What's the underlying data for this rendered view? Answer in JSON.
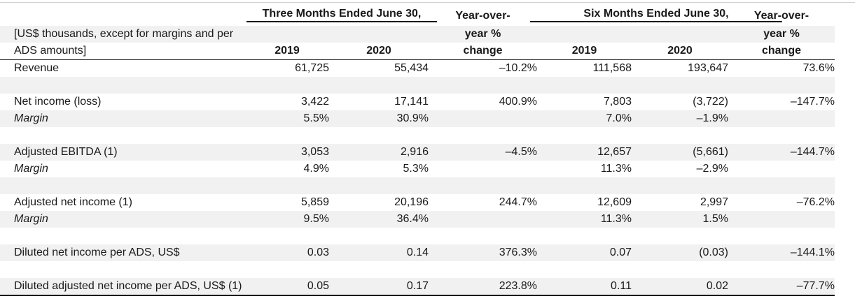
{
  "table": {
    "units_note": [
      "[US$ thousands, except for margins and per",
      "ADS amounts]"
    ],
    "column_groups": [
      {
        "title": "Three Months Ended June 30,",
        "years": [
          "2019",
          "2020"
        ]
      },
      {
        "title": "Six Months Ended June 30,",
        "years": [
          "2019",
          "2020"
        ]
      }
    ],
    "yoy_header_lines": [
      "Year-over-",
      "year %",
      "change"
    ],
    "rows": [
      {
        "type": "data",
        "label": "Revenue",
        "italic": false,
        "shaded": false,
        "values": [
          "61,725",
          "55,434",
          "–10.2%",
          "111,568",
          "193,647",
          "73.6%"
        ]
      },
      {
        "type": "spacer",
        "shaded": true,
        "values": [
          "",
          "",
          "",
          "",
          "",
          ""
        ]
      },
      {
        "type": "data",
        "label": "Net income (loss)",
        "italic": false,
        "shaded": false,
        "values": [
          "3,422",
          "17,141",
          "400.9%",
          "7,803",
          "(3,722)",
          "–147.7%"
        ]
      },
      {
        "type": "data",
        "label": "Margin",
        "italic": true,
        "shaded": true,
        "values": [
          "5.5%",
          "30.9%",
          "",
          "7.0%",
          "–1.9%",
          ""
        ]
      },
      {
        "type": "spacer",
        "shaded": false,
        "values": [
          "",
          "",
          "",
          "",
          "",
          ""
        ]
      },
      {
        "type": "data",
        "label": "Adjusted EBITDA (1)",
        "italic": false,
        "shaded": true,
        "values": [
          "3,053",
          "2,916",
          "–4.5%",
          "12,657",
          "(5,661)",
          "–144.7%"
        ]
      },
      {
        "type": "data",
        "label": "Margin",
        "italic": true,
        "shaded": false,
        "values": [
          "4.9%",
          "5.3%",
          "",
          "11.3%",
          "–2.9%",
          ""
        ]
      },
      {
        "type": "spacer",
        "shaded": true,
        "values": [
          "",
          "",
          "",
          "",
          "",
          ""
        ]
      },
      {
        "type": "data",
        "label": "Adjusted net income (1)",
        "italic": false,
        "shaded": false,
        "values": [
          "5,859",
          "20,196",
          "244.7%",
          "12,609",
          "2,997",
          "–76.2%"
        ]
      },
      {
        "type": "data",
        "label": "Margin",
        "italic": true,
        "shaded": true,
        "values": [
          "9.5%",
          "36.4%",
          "",
          "11.3%",
          "1.5%",
          ""
        ]
      },
      {
        "type": "spacer",
        "shaded": false,
        "values": [
          "",
          "",
          "",
          "",
          "",
          ""
        ]
      },
      {
        "type": "data",
        "label": "Diluted net income per ADS, US$",
        "italic": false,
        "shaded": true,
        "values": [
          "0.03",
          "0.14",
          "376.3%",
          "0.07",
          "(0.03)",
          "–144.1%"
        ]
      },
      {
        "type": "spacer",
        "shaded": false,
        "values": [
          "",
          "",
          "",
          "",
          "",
          ""
        ]
      },
      {
        "type": "data",
        "label": "Diluted adjusted net income per ADS, US$ (1)",
        "italic": false,
        "shaded": true,
        "values": [
          "0.05",
          "0.17",
          "223.8%",
          "0.11",
          "0.02",
          "–77.7%"
        ]
      }
    ]
  },
  "colors": {
    "stripe": "#f1f1f2",
    "text": "#1a1a1a",
    "rule": "#141414"
  }
}
